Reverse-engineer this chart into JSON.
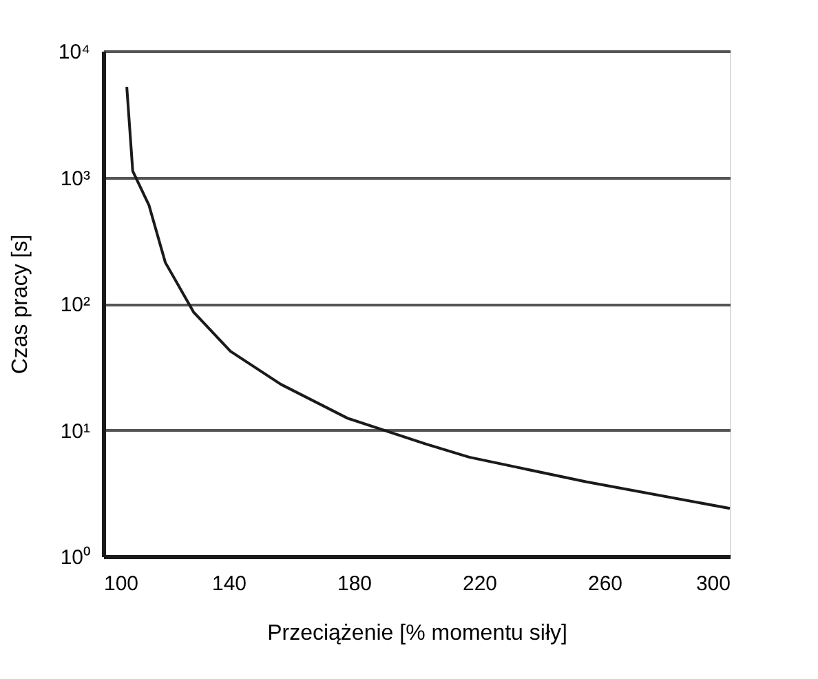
{
  "chart_data": {
    "type": "line",
    "xlabel": "Przeciążenie [% momentu siły]",
    "ylabel": "Czas pracy [s]",
    "x": [
      107.5,
      109.4,
      114.6,
      119.8,
      128.8,
      140.6,
      156.7,
      178,
      202.7,
      216.8,
      254,
      300
    ],
    "series": [
      {
        "color": "#1a1a1a",
        "values": [
          5200,
          1120,
          600,
          212,
          86,
          42,
          23,
          12.4,
          7.8,
          6.1,
          3.9,
          2.4
        ]
      }
    ],
    "log": "y",
    "xlim": [
      100,
      300
    ],
    "xticks": [
      100,
      140,
      180,
      220,
      260,
      300
    ],
    "ylim": [
      1,
      10000
    ],
    "yticks": [
      {
        "value": 1,
        "label": "10⁰"
      },
      {
        "value": 10,
        "label": "10¹"
      },
      {
        "value": 100,
        "label": "10²"
      },
      {
        "value": 1000,
        "label": "10³"
      },
      {
        "value": 10000,
        "label": "10⁴"
      }
    ],
    "grid": "y",
    "legend": false,
    "marker": "none",
    "line_style": "solid"
  }
}
